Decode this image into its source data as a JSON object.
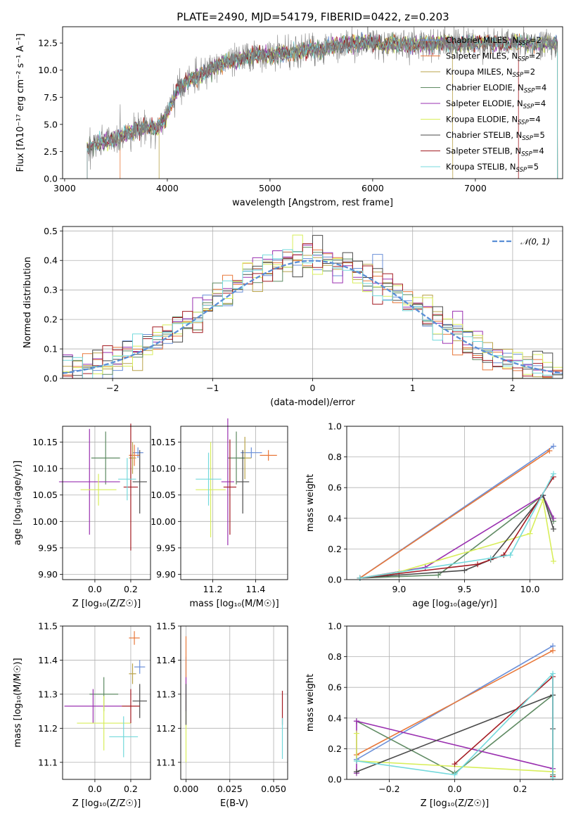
{
  "title": "PLATE=2490, MJD=54179, FIBERID=0422, z=0.203",
  "colors": {
    "Chabrier MILES": "#6a8fd8",
    "Salpeter MILES": "#e8783a",
    "Kroupa MILES": "#b9a34a",
    "Chabrier ELODIE": "#5e8a62",
    "Salpeter ELODIE": "#9a30b0",
    "Kroupa ELODIE": "#d8ee5a",
    "Chabrier STELIB": "#4a4a4a",
    "Salpeter STELIB": "#a31b22",
    "Kroupa STELIB": "#74d9dc"
  },
  "chart_data": [
    {
      "type": "line",
      "id": "spectrum",
      "xlabel": "wavelength [Angstrom, rest frame]",
      "ylabel": "Flux [fλ10⁻¹⁷ erg cm⁻² s⁻¹ A⁻¹]",
      "xlim": [
        2980,
        7850
      ],
      "ylim": [
        0,
        14
      ],
      "xticks": [
        3000,
        4000,
        5000,
        6000,
        7000
      ],
      "yticks": [
        0.0,
        2.5,
        5.0,
        7.5,
        10.0,
        12.5
      ],
      "data_x": [
        3220,
        3300,
        3400,
        3500,
        3600,
        3700,
        3800,
        3900,
        4000,
        4100,
        4200,
        4300,
        4400,
        4500,
        4600,
        4700,
        4800,
        4900,
        5000,
        5100,
        5200,
        5300,
        5400,
        5500,
        5600,
        5700,
        5800,
        5900,
        6000,
        6100,
        6200,
        6300,
        6400,
        6500,
        6600,
        6700,
        6800,
        6900,
        7000,
        7100,
        7200,
        7300,
        7400,
        7500,
        7600,
        7700,
        7800
      ],
      "data_y": [
        2.8,
        3.2,
        3.4,
        3.6,
        4.2,
        4.5,
        4.8,
        4.6,
        6.0,
        8.2,
        9.0,
        9.4,
        10.0,
        10.5,
        10.8,
        11.0,
        11.2,
        11.5,
        11.3,
        11.6,
        11.5,
        11.7,
        12.0,
        11.8,
        12.2,
        12.3,
        12.4,
        12.5,
        12.6,
        12.3,
        12.5,
        12.4,
        12.3,
        12.5,
        12.4,
        12.6,
        12.5,
        12.5,
        12.4,
        12.6,
        12.5,
        12.4,
        12.6,
        12.5,
        12.4,
        12.5,
        12.4
      ],
      "model_names": [
        "Chabrier MILES",
        "Salpeter MILES",
        "Kroupa MILES",
        "Chabrier ELODIE",
        "Salpeter ELODIE",
        "Kroupa ELODIE",
        "Chabrier STELIB",
        "Salpeter STELIB",
        "Kroupa STELIB"
      ],
      "legend": [
        {
          "name": "Chabrier MILES",
          "label": "Chabrier MILES, N",
          "sub": "SSP",
          "suffix": "=2"
        },
        {
          "name": "Salpeter MILES",
          "label": "Salpeter MILES, N",
          "sub": "SSP",
          "suffix": "=2"
        },
        {
          "name": "Kroupa MILES",
          "label": "Kroupa MILES, N",
          "sub": "SSP",
          "suffix": "=2"
        },
        {
          "name": "Chabrier ELODIE",
          "label": "Chabrier ELODIE, N",
          "sub": "SSP",
          "suffix": "=4"
        },
        {
          "name": "Salpeter ELODIE",
          "label": "Salpeter ELODIE, N",
          "sub": "SSP",
          "suffix": "=4"
        },
        {
          "name": "Kroupa ELODIE",
          "label": "Kroupa ELODIE, N",
          "sub": "SSP",
          "suffix": "=4"
        },
        {
          "name": "Chabrier STELIB",
          "label": "Chabrier STELIB, N",
          "sub": "SSP",
          "suffix": "=5"
        },
        {
          "name": "Salpeter STELIB",
          "label": "Salpeter STELIB, N",
          "sub": "SSP",
          "suffix": "=4"
        },
        {
          "name": "Kroupa STELIB",
          "label": "Kroupa STELIB, N",
          "sub": "SSP",
          "suffix": "=5"
        }
      ],
      "legend_position": "upper-right"
    },
    {
      "type": "histogram",
      "id": "residuals",
      "xlabel": "(data-model)/error",
      "ylabel": "Normed distribution",
      "xlim": [
        -2.5,
        2.5
      ],
      "ylim": [
        0,
        0.515
      ],
      "xticks": [
        -2,
        -1,
        0,
        1,
        2
      ],
      "yticks": [
        0.0,
        0.1,
        0.2,
        0.3,
        0.4,
        0.5
      ],
      "reference_label": "𝒩(0, 1)",
      "reference_color": "#5b8fd6",
      "legend_position": "upper-right",
      "bin_width": 0.1,
      "bin_edges_start": -2.5
    },
    {
      "type": "scatter",
      "id": "age-vs-Z",
      "xlabel": "Z [log₁₀(Z/Z☉)]",
      "ylabel": "age  [log₁₀(age/yr)]",
      "xlim": [
        -0.18,
        0.31
      ],
      "ylim": [
        9.89,
        10.18
      ],
      "xticks": [
        0.0,
        0.2
      ],
      "yticks": [
        9.9,
        9.95,
        10.0,
        10.05,
        10.1,
        10.15
      ],
      "points": [
        {
          "model": "Chabrier MILES",
          "x": 0.24,
          "y": 10.13,
          "xerr": 0.03,
          "yerr": 0.01
        },
        {
          "model": "Salpeter MILES",
          "x": 0.22,
          "y": 10.125,
          "xerr": 0.03,
          "yerr": 0.02
        },
        {
          "model": "Kroupa MILES",
          "x": 0.21,
          "y": 10.12,
          "xerr": 0.02,
          "yerr": 0.03
        },
        {
          "model": "Chabrier ELODIE",
          "x": 0.06,
          "y": 10.12,
          "xerr": 0.08,
          "yerr": 0.05
        },
        {
          "model": "Salpeter ELODIE",
          "x": -0.03,
          "y": 10.075,
          "xerr": 0.17,
          "yerr": 0.1
        },
        {
          "model": "Kroupa ELODIE",
          "x": 0.02,
          "y": 10.06,
          "xerr": 0.1,
          "yerr": 0.03
        },
        {
          "model": "Chabrier STELIB",
          "x": 0.25,
          "y": 10.075,
          "xerr": 0.04,
          "yerr": 0.06
        },
        {
          "model": "Salpeter STELIB",
          "x": 0.2,
          "y": 10.065,
          "xerr": 0.04,
          "yerr": 0.12
        },
        {
          "model": "Kroupa STELIB",
          "x": 0.18,
          "y": 10.08,
          "xerr": 0.05,
          "yerr": 0.04
        }
      ]
    },
    {
      "type": "scatter",
      "id": "age-vs-mass",
      "xlabel": "mass [log₁₀(M/M☉)]",
      "ylabel": "",
      "xlim": [
        11.05,
        11.55
      ],
      "ylim": [
        9.89,
        10.18
      ],
      "xticks": [
        11.2,
        11.4
      ],
      "yticks": [
        9.9,
        9.95,
        10.0,
        10.05,
        10.1,
        10.15
      ],
      "points": [
        {
          "model": "Chabrier MILES",
          "x": 11.38,
          "y": 10.13,
          "xerr": 0.05,
          "yerr": 0.01
        },
        {
          "model": "Salpeter MILES",
          "x": 11.46,
          "y": 10.125,
          "xerr": 0.04,
          "yerr": 0.01
        },
        {
          "model": "Kroupa MILES",
          "x": 11.35,
          "y": 10.12,
          "xerr": 0.03,
          "yerr": 0.04
        },
        {
          "model": "Chabrier ELODIE",
          "x": 11.31,
          "y": 10.12,
          "xerr": 0.04,
          "yerr": 0.05
        },
        {
          "model": "Salpeter ELODIE",
          "x": 11.27,
          "y": 10.075,
          "xerr": 0.03,
          "yerr": 0.12
        },
        {
          "model": "Kroupa ELODIE",
          "x": 11.19,
          "y": 10.06,
          "xerr": 0.07,
          "yerr": 0.09
        },
        {
          "model": "Chabrier STELIB",
          "x": 11.34,
          "y": 10.075,
          "xerr": 0.03,
          "yerr": 0.06
        },
        {
          "model": "Salpeter STELIB",
          "x": 11.28,
          "y": 10.065,
          "xerr": 0.03,
          "yerr": 0.09
        },
        {
          "model": "Kroupa STELIB",
          "x": 11.18,
          "y": 10.08,
          "xerr": 0.06,
          "yerr": 0.05
        }
      ]
    },
    {
      "type": "line",
      "id": "weight-vs-age",
      "xlabel": "age  [log₁₀(age/yr)]",
      "ylabel": "mass weight",
      "xlim": [
        8.6,
        10.25
      ],
      "ylim": [
        0,
        1
      ],
      "xticks": [
        9.0,
        9.5,
        10.0
      ],
      "yticks": [
        0.0,
        0.2,
        0.4,
        0.6,
        0.8,
        1.0
      ],
      "series": [
        {
          "model": "Chabrier MILES",
          "x": [
            8.7,
            10.18
          ],
          "y": [
            0.01,
            0.87
          ]
        },
        {
          "model": "Salpeter MILES",
          "x": [
            8.7,
            10.15
          ],
          "y": [
            0.01,
            0.84
          ]
        },
        {
          "model": "Chabrier ELODIE",
          "x": [
            8.7,
            9.3,
            10.1,
            10.18
          ],
          "y": [
            0.01,
            0.03,
            0.55,
            0.38
          ]
        },
        {
          "model": "Salpeter ELODIE",
          "x": [
            8.7,
            9.2,
            10.1,
            10.18
          ],
          "y": [
            0.01,
            0.08,
            0.55,
            0.4
          ]
        },
        {
          "model": "Kroupa ELODIE",
          "x": [
            8.7,
            9.0,
            10.0,
            10.1,
            10.18
          ],
          "y": [
            0.01,
            0.05,
            0.3,
            0.52,
            0.12
          ]
        },
        {
          "model": "Chabrier STELIB",
          "x": [
            8.7,
            9.0,
            9.5,
            9.7,
            10.1,
            10.18
          ],
          "y": [
            0.01,
            0.03,
            0.06,
            0.13,
            0.55,
            0.33
          ]
        },
        {
          "model": "Salpeter STELIB",
          "x": [
            8.7,
            9.6,
            9.8,
            10.18
          ],
          "y": [
            0.01,
            0.1,
            0.16,
            0.67
          ]
        },
        {
          "model": "Kroupa STELIB",
          "x": [
            8.7,
            9.7,
            9.85,
            10.18
          ],
          "y": [
            0.01,
            0.14,
            0.16,
            0.69
          ]
        }
      ]
    },
    {
      "type": "scatter",
      "id": "mass-vs-Z",
      "xlabel": "Z [log₁₀(Z/Z☉)]",
      "ylabel": "mass [log₁₀(M/M☉)]",
      "xlim": [
        -0.18,
        0.31
      ],
      "ylim": [
        11.05,
        11.5
      ],
      "xticks": [
        0.0,
        0.2
      ],
      "yticks": [
        11.1,
        11.2,
        11.3,
        11.4,
        11.5
      ],
      "points": [
        {
          "model": "Chabrier MILES",
          "x": 0.25,
          "y": 11.38,
          "xerr": 0.03,
          "yerr": 0.02
        },
        {
          "model": "Salpeter MILES",
          "x": 0.22,
          "y": 11.465,
          "xerr": 0.03,
          "yerr": 0.02
        },
        {
          "model": "Kroupa MILES",
          "x": 0.21,
          "y": 11.36,
          "xerr": 0.02,
          "yerr": 0.03
        },
        {
          "model": "Chabrier ELODIE",
          "x": 0.05,
          "y": 11.3,
          "xerr": 0.08,
          "yerr": 0.05
        },
        {
          "model": "Salpeter ELODIE",
          "x": -0.01,
          "y": 11.265,
          "xerr": 0.16,
          "yerr": 0.05
        },
        {
          "model": "Kroupa ELODIE",
          "x": 0.05,
          "y": 11.215,
          "xerr": 0.15,
          "yerr": 0.08
        },
        {
          "model": "Chabrier STELIB",
          "x": 0.25,
          "y": 11.28,
          "xerr": 0.04,
          "yerr": 0.05
        },
        {
          "model": "Salpeter STELIB",
          "x": 0.2,
          "y": 11.265,
          "xerr": 0.05,
          "yerr": 0.05
        },
        {
          "model": "Kroupa STELIB",
          "x": 0.16,
          "y": 11.175,
          "xerr": 0.08,
          "yerr": 0.06
        }
      ]
    },
    {
      "type": "scatter",
      "id": "mass-vs-EBV",
      "xlabel": "E(B-V)",
      "ylabel": "",
      "xlim": [
        -0.003,
        0.058
      ],
      "ylim": [
        11.05,
        11.5
      ],
      "xticks": [
        0.0,
        0.025,
        0.05
      ],
      "yticks": [
        11.1,
        11.2,
        11.3,
        11.4,
        11.5
      ],
      "points": [
        {
          "model": "Chabrier MILES",
          "x": 0.0,
          "y": 11.38,
          "xerr": 0.0,
          "yerr": 0.03
        },
        {
          "model": "Salpeter MILES",
          "x": 0.0,
          "y": 11.4,
          "xerr": 0.0,
          "yerr": 0.07
        },
        {
          "model": "Kroupa ELODIE",
          "x": 0.0,
          "y": 11.2,
          "xerr": 0.0,
          "yerr": 0.1
        },
        {
          "model": "Salpeter ELODIE",
          "x": 0.0,
          "y": 11.3,
          "xerr": 0.0,
          "yerr": 0.05
        },
        {
          "model": "Chabrier STELIB",
          "x": 0.0,
          "y": 11.27,
          "xerr": 0.0,
          "yerr": 0.06
        },
        {
          "model": "Salpeter STELIB",
          "x": 0.055,
          "y": 11.26,
          "xerr": 0.0,
          "yerr": 0.05
        },
        {
          "model": "Kroupa STELIB",
          "x": 0.055,
          "y": 11.17,
          "xerr": 0.0,
          "yerr": 0.06
        }
      ]
    },
    {
      "type": "line",
      "id": "weight-vs-Z",
      "xlabel": "Z [log₁₀(Z/Z☉)]",
      "ylabel": "mass weight",
      "xlim": [
        -0.33,
        0.33
      ],
      "ylim": [
        0,
        1
      ],
      "xticks": [
        -0.2,
        0.0,
        0.2
      ],
      "yticks": [
        0.0,
        0.2,
        0.4,
        0.6,
        0.8,
        1.0
      ],
      "series": [
        {
          "model": "Chabrier MILES",
          "x": [
            -0.3,
            0.3
          ],
          "y": [
            0.13,
            0.87
          ]
        },
        {
          "model": "Salpeter MILES",
          "x": [
            -0.3,
            0.3
          ],
          "y": [
            0.16,
            0.84
          ]
        },
        {
          "model": "Chabrier ELODIE",
          "x": [
            -0.3,
            0.0,
            0.3,
            0.3
          ],
          "y": [
            0.38,
            0.04,
            0.55,
            0.03
          ]
        },
        {
          "model": "Salpeter ELODIE",
          "x": [
            -0.3,
            -0.3,
            0.3
          ],
          "y": [
            0.04,
            0.38,
            0.07
          ]
        },
        {
          "model": "Kroupa ELODIE",
          "x": [
            -0.3,
            -0.3,
            0.3
          ],
          "y": [
            0.3,
            0.12,
            0.05
          ]
        },
        {
          "model": "Chabrier STELIB",
          "x": [
            -0.3,
            0.3,
            0.3
          ],
          "y": [
            0.05,
            0.55,
            0.33
          ]
        },
        {
          "model": "Salpeter STELIB",
          "x": [
            0.0,
            0.3,
            0.3
          ],
          "y": [
            0.1,
            0.67,
            0.02
          ]
        },
        {
          "model": "Kroupa STELIB",
          "x": [
            -0.3,
            0.0,
            0.3,
            0.3
          ],
          "y": [
            0.12,
            0.03,
            0.69,
            0.01
          ]
        }
      ]
    }
  ]
}
